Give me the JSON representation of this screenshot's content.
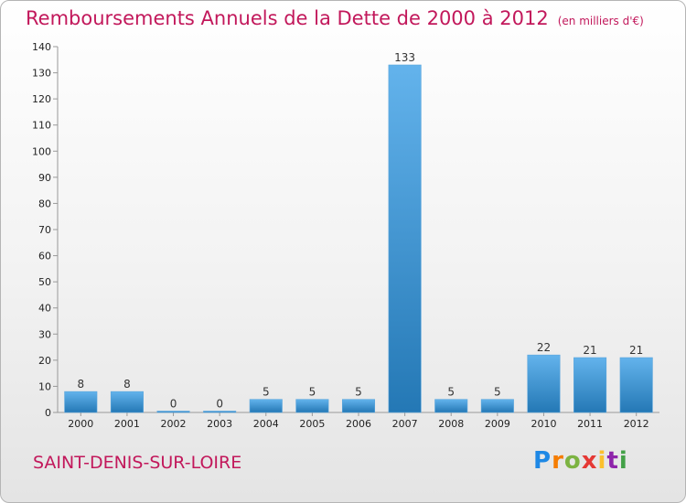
{
  "header": {
    "title": "Remboursements Annuels de la Dette de 2000 à 2012",
    "unit": "(en milliers d'€)"
  },
  "footer": {
    "commune": "SAINT-DENIS-SUR-LOIRE",
    "logo": [
      "P",
      "r",
      "o",
      "x",
      "i",
      "t",
      "i"
    ]
  },
  "colors": {
    "title": "#c2185b",
    "bar_light": "#63b3ec",
    "bar_dark": "#2478b5"
  },
  "chart_data": {
    "type": "bar",
    "categories": [
      "2000",
      "2001",
      "2002",
      "2003",
      "2004",
      "2005",
      "2006",
      "2007",
      "2008",
      "2009",
      "2010",
      "2011",
      "2012"
    ],
    "values": [
      8,
      8,
      0,
      0,
      5,
      5,
      5,
      133,
      5,
      5,
      22,
      21,
      21
    ],
    "title": "Remboursements Annuels de la Dette de 2000 à 2012",
    "xlabel": "",
    "ylabel": "",
    "ylim": [
      0,
      140
    ],
    "yticks": [
      0,
      10,
      20,
      30,
      40,
      50,
      60,
      70,
      80,
      90,
      100,
      110,
      120,
      130,
      140
    ],
    "grid": false,
    "data_labels": true
  }
}
